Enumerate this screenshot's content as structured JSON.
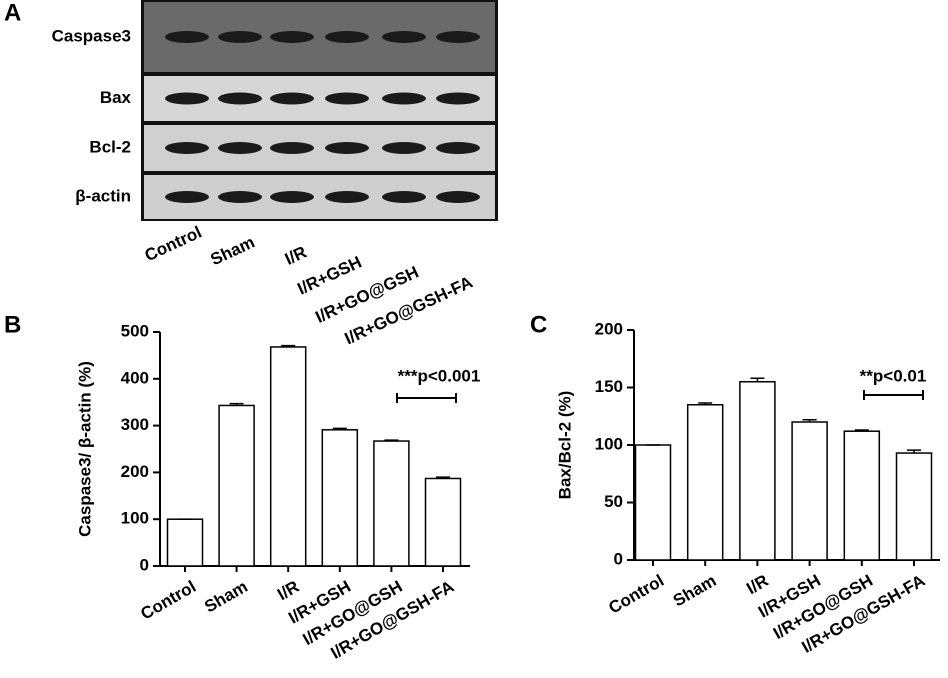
{
  "panel_labels": [
    "A",
    "B",
    "C"
  ],
  "blot": {
    "rows": [
      "Caspase3",
      "Bax",
      "Bcl-2",
      "β-actin"
    ],
    "lanes": [
      "Control",
      "Sham",
      "I/R",
      "I/R+GSH",
      "I/R+GO@GSH",
      "I/R+GO@GSH-FA"
    ]
  },
  "chart_data": [
    {
      "type": "bar",
      "y_label": "Caspase3/ β-actin (%)",
      "categories": [
        "Control",
        "Sham",
        "I/R",
        "I/R+GSH",
        "I/R+GO@GSH",
        "I/R+GO@GSH-FA"
      ],
      "values": [
        100,
        343,
        468,
        291,
        267,
        187
      ],
      "errors": [
        0,
        4,
        3,
        3,
        2,
        3
      ],
      "color": "#ffffff",
      "ylim": [
        0,
        500
      ],
      "yticks": [
        0,
        100,
        200,
        300,
        400,
        500
      ],
      "annotation": "***p<0.001"
    },
    {
      "type": "bar",
      "y_label": "Bax/Bcl-2 (%)",
      "categories": [
        "Control",
        "Sham",
        "I/R",
        "I/R+GSH",
        "I/R+GO@GSH",
        "I/R+GO@GSH-FA"
      ],
      "values": [
        100,
        135,
        155,
        120,
        112,
        93
      ],
      "errors": [
        0,
        1.5,
        3,
        2,
        1,
        2.5
      ],
      "color": "#ffffff",
      "ylim": [
        0,
        200
      ],
      "yticks": [
        0,
        50,
        100,
        150,
        200
      ],
      "annotation": "**p<0.01"
    }
  ]
}
